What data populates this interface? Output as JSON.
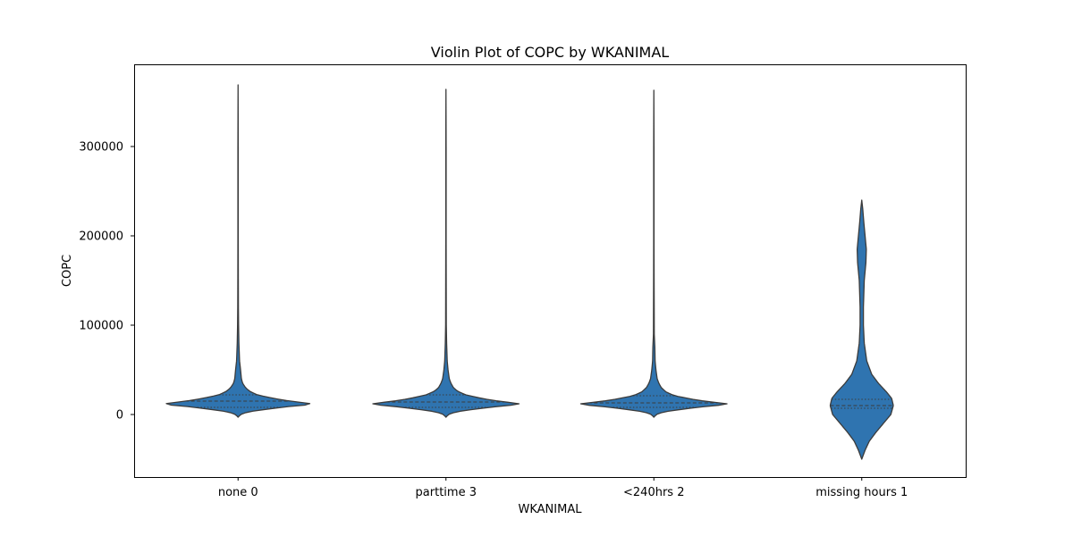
{
  "chart_data": {
    "type": "violin",
    "title": "Violin Plot of COPC by WKANIMAL",
    "xlabel": "WKANIMAL",
    "ylabel": "COPC",
    "categories": [
      "none 0",
      "parttime 3",
      "<240hrs 2",
      "missing hours 1"
    ],
    "ylim": [
      -70000,
      392000
    ],
    "yticks": [
      0,
      100000,
      200000,
      300000
    ],
    "ytick_labels": [
      "0",
      "100000",
      "200000",
      "300000"
    ],
    "grid": false,
    "legend": "none",
    "fill_color": "#2f74b0",
    "edge_color": "#3b3b3b",
    "violins": [
      {
        "category": "none 0",
        "min": -3000,
        "max": 369000,
        "q1": 8000,
        "median": 15000,
        "q3": 22000,
        "profile": [
          [
            -3000,
            0
          ],
          [
            0,
            0.03
          ],
          [
            3000,
            0.12
          ],
          [
            6000,
            0.35
          ],
          [
            9000,
            0.62
          ],
          [
            11000,
            0.86
          ],
          [
            12000,
            0.88
          ],
          [
            14000,
            0.72
          ],
          [
            16000,
            0.55
          ],
          [
            19000,
            0.38
          ],
          [
            22000,
            0.23
          ],
          [
            26000,
            0.14
          ],
          [
            30000,
            0.09
          ],
          [
            35000,
            0.055
          ],
          [
            40000,
            0.04
          ],
          [
            50000,
            0.03
          ],
          [
            60000,
            0.018
          ],
          [
            80000,
            0.01
          ],
          [
            100000,
            0.006
          ],
          [
            120000,
            0.004
          ],
          [
            150000,
            0.003
          ],
          [
            200000,
            0.002
          ],
          [
            300000,
            0.002
          ],
          [
            369000,
            0
          ]
        ]
      },
      {
        "category": "parttime 3",
        "min": -3000,
        "max": 364000,
        "q1": 8000,
        "median": 14000,
        "q3": 22000,
        "profile": [
          [
            -3000,
            0
          ],
          [
            0,
            0.03
          ],
          [
            3000,
            0.12
          ],
          [
            6000,
            0.35
          ],
          [
            9000,
            0.62
          ],
          [
            11000,
            0.86
          ],
          [
            12000,
            0.88
          ],
          [
            14000,
            0.72
          ],
          [
            16000,
            0.55
          ],
          [
            19000,
            0.38
          ],
          [
            22000,
            0.24
          ],
          [
            26000,
            0.14
          ],
          [
            30000,
            0.09
          ],
          [
            35000,
            0.06
          ],
          [
            40000,
            0.04
          ],
          [
            50000,
            0.025
          ],
          [
            60000,
            0.015
          ],
          [
            80000,
            0.008
          ],
          [
            100000,
            0.004
          ],
          [
            150000,
            0.003
          ],
          [
            200000,
            0.002
          ],
          [
            300000,
            0.002
          ],
          [
            364000,
            0
          ]
        ]
      },
      {
        "category": "<240hrs 2",
        "min": -3000,
        "max": 363000,
        "q1": 8000,
        "median": 13000,
        "q3": 21000,
        "profile": [
          [
            -3000,
            0
          ],
          [
            0,
            0.03
          ],
          [
            3000,
            0.12
          ],
          [
            6000,
            0.35
          ],
          [
            9000,
            0.62
          ],
          [
            11000,
            0.86
          ],
          [
            12000,
            0.88
          ],
          [
            14000,
            0.7
          ],
          [
            16000,
            0.52
          ],
          [
            19000,
            0.36
          ],
          [
            21000,
            0.25
          ],
          [
            25000,
            0.15
          ],
          [
            30000,
            0.09
          ],
          [
            35000,
            0.06
          ],
          [
            40000,
            0.04
          ],
          [
            50000,
            0.025
          ],
          [
            60000,
            0.015
          ],
          [
            75000,
            0.012
          ],
          [
            90000,
            0.005
          ],
          [
            150000,
            0.003
          ],
          [
            200000,
            0.002
          ],
          [
            300000,
            0.002
          ],
          [
            363000,
            0
          ]
        ]
      },
      {
        "category": "missing hours 1",
        "min": -50000,
        "max": 240000,
        "q1": 7000,
        "median": 10000,
        "q3": 17000,
        "profile": [
          [
            -50000,
            0
          ],
          [
            -40000,
            0.04
          ],
          [
            -30000,
            0.09
          ],
          [
            -20000,
            0.17
          ],
          [
            -10000,
            0.26
          ],
          [
            0,
            0.35
          ],
          [
            10000,
            0.38
          ],
          [
            18000,
            0.36
          ],
          [
            25000,
            0.3
          ],
          [
            35000,
            0.2
          ],
          [
            45000,
            0.12
          ],
          [
            60000,
            0.06
          ],
          [
            80000,
            0.03
          ],
          [
            100000,
            0.02
          ],
          [
            120000,
            0.02
          ],
          [
            150000,
            0.03
          ],
          [
            170000,
            0.05
          ],
          [
            185000,
            0.055
          ],
          [
            200000,
            0.04
          ],
          [
            215000,
            0.025
          ],
          [
            230000,
            0.012
          ],
          [
            240000,
            0
          ]
        ]
      }
    ]
  }
}
